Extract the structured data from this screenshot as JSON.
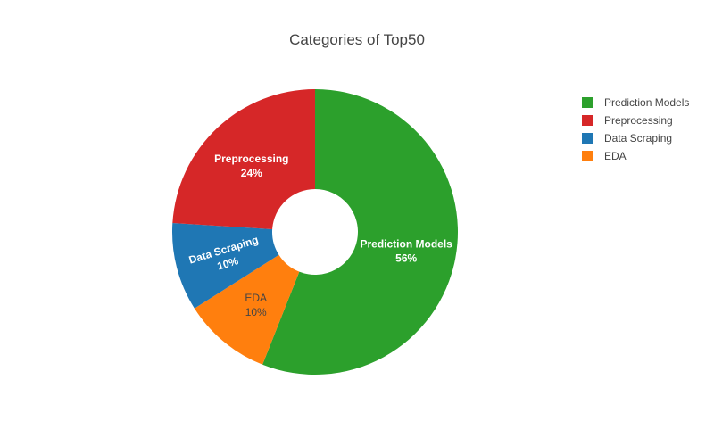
{
  "chart_data": {
    "type": "pie",
    "title": "Categories of Top50",
    "hole": 0.3,
    "legend_position": "top-right",
    "slices": [
      {
        "label": "Prediction Models",
        "value": 56,
        "percent_label": "56%",
        "color": "#2ca02c",
        "text_color": "#ffffff"
      },
      {
        "label": "EDA",
        "value": 10,
        "percent_label": "10%",
        "color": "#ff7f0e",
        "text_color": "#444444"
      },
      {
        "label": "Data Scraping",
        "value": 10,
        "percent_label": "10%",
        "color": "#1f77b4",
        "text_color": "#ffffff"
      },
      {
        "label": "Preprocessing",
        "value": 24,
        "percent_label": "24%",
        "color": "#d62728",
        "text_color": "#ffffff"
      }
    ],
    "legend": [
      {
        "label": "Prediction Models",
        "color": "#2ca02c"
      },
      {
        "label": "Preprocessing",
        "color": "#d62728"
      },
      {
        "label": "Data Scraping",
        "color": "#1f77b4"
      },
      {
        "label": "EDA",
        "color": "#ff7f0e"
      }
    ]
  }
}
